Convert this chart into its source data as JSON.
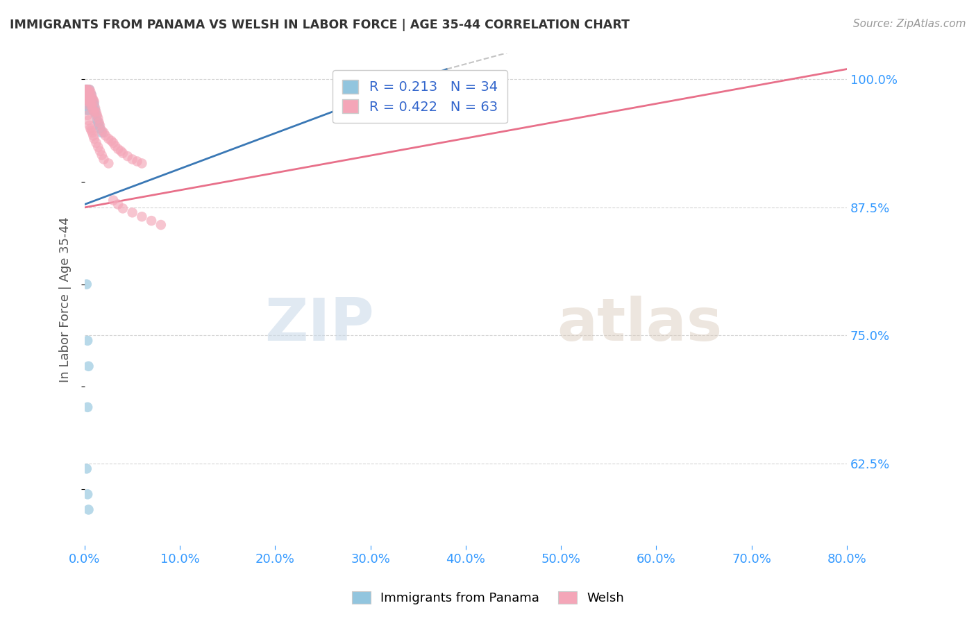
{
  "title": "IMMIGRANTS FROM PANAMA VS WELSH IN LABOR FORCE | AGE 35-44 CORRELATION CHART",
  "source": "Source: ZipAtlas.com",
  "ylabel": "In Labor Force | Age 35-44",
  "legend_labels": [
    "Immigrants from Panama",
    "Welsh"
  ],
  "r_blue": 0.213,
  "n_blue": 34,
  "r_pink": 0.422,
  "n_pink": 63,
  "blue_color": "#92c5de",
  "pink_color": "#f4a6b8",
  "blue_line_color": "#3a78b5",
  "pink_line_color": "#e8708a",
  "blue_dash_color": "#aaaaaa",
  "x_min": 0.0,
  "x_max": 0.8,
  "y_min": 0.545,
  "y_max": 1.025,
  "right_yticks": [
    0.625,
    0.75,
    0.875,
    1.0
  ],
  "right_yticklabels": [
    "62.5%",
    "75.0%",
    "87.5%",
    "100.0%"
  ],
  "blue_x": [
    0.001,
    0.002,
    0.002,
    0.003,
    0.003,
    0.003,
    0.004,
    0.004,
    0.005,
    0.005,
    0.006,
    0.006,
    0.007,
    0.007,
    0.008,
    0.008,
    0.009,
    0.009,
    0.01,
    0.01,
    0.011,
    0.012,
    0.013,
    0.014,
    0.015,
    0.016,
    0.018,
    0.002,
    0.003,
    0.004,
    0.003,
    0.002,
    0.003,
    0.004
  ],
  "blue_y": [
    0.99,
    0.98,
    0.97,
    0.99,
    0.985,
    0.975,
    0.98,
    0.97,
    0.99,
    0.985,
    0.98,
    0.975,
    0.985,
    0.975,
    0.98,
    0.972,
    0.978,
    0.97,
    0.975,
    0.968,
    0.97,
    0.965,
    0.96,
    0.958,
    0.955,
    0.952,
    0.948,
    0.8,
    0.745,
    0.72,
    0.68,
    0.62,
    0.595,
    0.58
  ],
  "pink_x": [
    0.001,
    0.001,
    0.002,
    0.002,
    0.003,
    0.003,
    0.003,
    0.004,
    0.004,
    0.005,
    0.005,
    0.005,
    0.006,
    0.006,
    0.007,
    0.007,
    0.008,
    0.008,
    0.009,
    0.009,
    0.01,
    0.01,
    0.011,
    0.012,
    0.013,
    0.014,
    0.015,
    0.016,
    0.018,
    0.02,
    0.022,
    0.025,
    0.028,
    0.03,
    0.032,
    0.035,
    0.038,
    0.04,
    0.045,
    0.05,
    0.055,
    0.06,
    0.003,
    0.004,
    0.005,
    0.006,
    0.007,
    0.008,
    0.009,
    0.01,
    0.012,
    0.014,
    0.016,
    0.018,
    0.02,
    0.025,
    0.03,
    0.035,
    0.04,
    0.05,
    0.06,
    0.07,
    0.08
  ],
  "pink_y": [
    0.99,
    0.98,
    0.99,
    0.985,
    0.99,
    0.985,
    0.975,
    0.988,
    0.978,
    0.99,
    0.985,
    0.98,
    0.988,
    0.978,
    0.985,
    0.975,
    0.982,
    0.972,
    0.98,
    0.97,
    0.978,
    0.968,
    0.972,
    0.968,
    0.965,
    0.962,
    0.958,
    0.955,
    0.95,
    0.948,
    0.945,
    0.942,
    0.94,
    0.938,
    0.935,
    0.932,
    0.93,
    0.928,
    0.925,
    0.922,
    0.92,
    0.918,
    0.965,
    0.96,
    0.955,
    0.952,
    0.95,
    0.948,
    0.945,
    0.942,
    0.938,
    0.934,
    0.93,
    0.926,
    0.922,
    0.918,
    0.882,
    0.878,
    0.874,
    0.87,
    0.866,
    0.862,
    0.858
  ],
  "watermark_zip": "ZIP",
  "watermark_atlas": "atlas",
  "background_color": "#ffffff"
}
